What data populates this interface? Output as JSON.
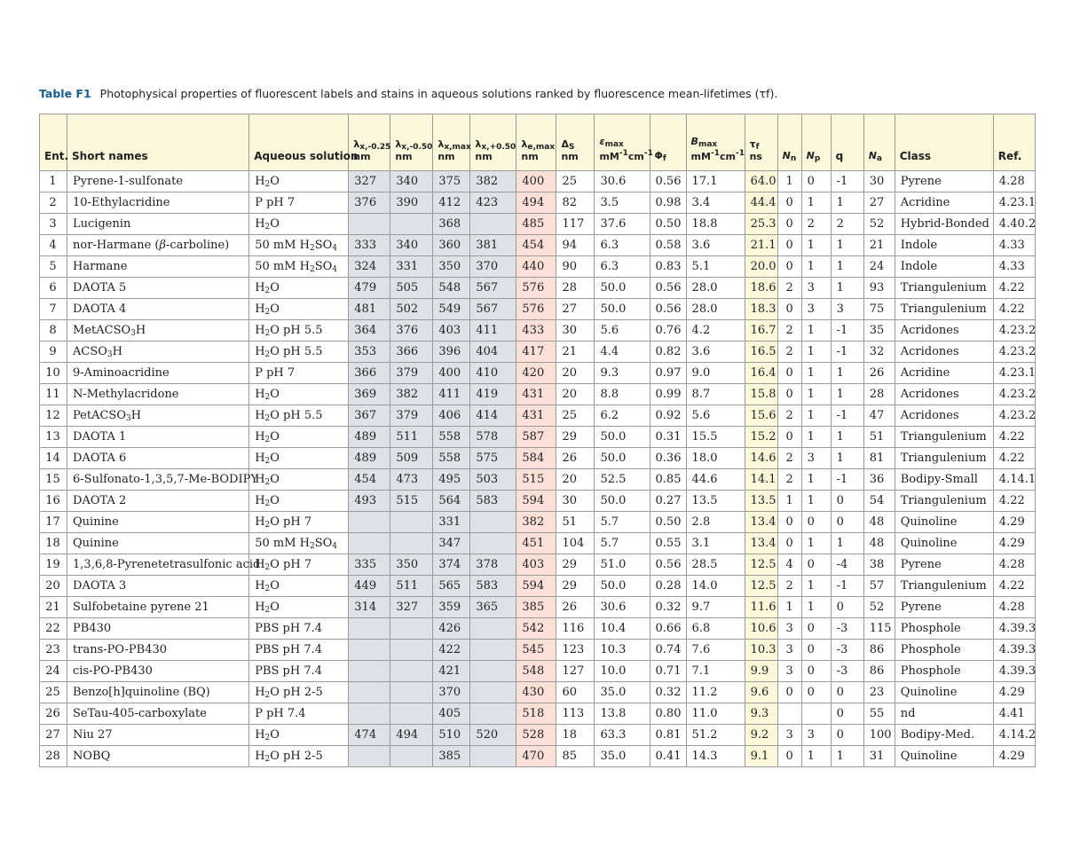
{
  "caption": {
    "label": "Table F1",
    "text": "Photophysical properties of fluorescent labels and stains in aqueous solutions ranked by fluorescence mean-lifetimes (τf)."
  },
  "columns": [
    {
      "key": "ent",
      "label": "Ent."
    },
    {
      "key": "name",
      "label": "Short names"
    },
    {
      "key": "solution",
      "label": "Aqueous solution"
    },
    {
      "key": "lx025",
      "label": "λx,-0.25 nm"
    },
    {
      "key": "lx050",
      "label": "λx,-0.50 nm"
    },
    {
      "key": "lxmax",
      "label": "λx,max nm"
    },
    {
      "key": "lxp050",
      "label": "λx,+0.50 nm"
    },
    {
      "key": "lemax",
      "label": "λe,max nm"
    },
    {
      "key": "ds",
      "label": "ΔS nm"
    },
    {
      "key": "emax",
      "label": "εmax mM-1cm-1"
    },
    {
      "key": "phi",
      "label": "Φf"
    },
    {
      "key": "bmax",
      "label": "Bmax mM-1cm-1"
    },
    {
      "key": "tau",
      "label": "τf ns"
    },
    {
      "key": "nn",
      "label": "Nn"
    },
    {
      "key": "np",
      "label": "Np"
    },
    {
      "key": "q",
      "label": "q"
    },
    {
      "key": "na",
      "label": "Na"
    },
    {
      "key": "cls",
      "label": "Class"
    },
    {
      "key": "ref",
      "label": "Ref."
    }
  ],
  "rows": [
    [
      "1",
      "Pyrene-1-sulfonate",
      "H2O",
      "327",
      "340",
      "375",
      "382",
      "400",
      "25",
      "30.6",
      "0.56",
      "17.1",
      "64.0",
      "1",
      "0",
      "-1",
      "30",
      "Pyrene",
      "4.28"
    ],
    [
      "2",
      "10-Ethylacridine",
      "P pH 7",
      "376",
      "390",
      "412",
      "423",
      "494",
      "82",
      "3.5",
      "0.98",
      "3.4",
      "44.4",
      "0",
      "1",
      "1",
      "27",
      "Acridine",
      "4.23.1"
    ],
    [
      "3",
      "Lucigenin",
      "H2O",
      "",
      "",
      "368",
      "",
      "485",
      "117",
      "37.6",
      "0.50",
      "18.8",
      "25.3",
      "0",
      "2",
      "2",
      "52",
      "Hybrid-Bonded",
      "4.40.2"
    ],
    [
      "4",
      "nor-Harmane (β-carboline)",
      "50 mM H2SO4",
      "333",
      "340",
      "360",
      "381",
      "454",
      "94",
      "6.3",
      "0.58",
      "3.6",
      "21.1",
      "0",
      "1",
      "1",
      "21",
      "Indole",
      "4.33"
    ],
    [
      "5",
      "Harmane",
      "50 mM H2SO4",
      "324",
      "331",
      "350",
      "370",
      "440",
      "90",
      "6.3",
      "0.83",
      "5.1",
      "20.0",
      "0",
      "1",
      "1",
      "24",
      "Indole",
      "4.33"
    ],
    [
      "6",
      "DAOTA 5",
      "H2O",
      "479",
      "505",
      "548",
      "567",
      "576",
      "28",
      "50.0",
      "0.56",
      "28.0",
      "18.6",
      "2",
      "3",
      "1",
      "93",
      "Triangulenium",
      "4.22"
    ],
    [
      "7",
      "DAOTA 4",
      "H2O",
      "481",
      "502",
      "549",
      "567",
      "576",
      "27",
      "50.0",
      "0.56",
      "28.0",
      "18.3",
      "0",
      "3",
      "3",
      "75",
      "Triangulenium",
      "4.22"
    ],
    [
      "8",
      "MetACSO3H",
      "H2O pH 5.5",
      "364",
      "376",
      "403",
      "411",
      "433",
      "30",
      "5.6",
      "0.76",
      "4.2",
      "16.7",
      "2",
      "1",
      "-1",
      "35",
      "Acridones",
      "4.23.2"
    ],
    [
      "9",
      "ACSO3H",
      "H2O pH 5.5",
      "353",
      "366",
      "396",
      "404",
      "417",
      "21",
      "4.4",
      "0.82",
      "3.6",
      "16.5",
      "2",
      "1",
      "-1",
      "32",
      "Acridones",
      "4.23.2"
    ],
    [
      "10",
      "9-Aminoacridine",
      "P pH 7",
      "366",
      "379",
      "400",
      "410",
      "420",
      "20",
      "9.3",
      "0.97",
      "9.0",
      "16.4",
      "0",
      "1",
      "1",
      "26",
      "Acridine",
      "4.23.1"
    ],
    [
      "11",
      "N-Methylacridone",
      "H2O",
      "369",
      "382",
      "411",
      "419",
      "431",
      "20",
      "8.8",
      "0.99",
      "8.7",
      "15.8",
      "0",
      "1",
      "1",
      "28",
      "Acridones",
      "4.23.2"
    ],
    [
      "12",
      "PetACSO3H",
      "H2O pH 5.5",
      "367",
      "379",
      "406",
      "414",
      "431",
      "25",
      "6.2",
      "0.92",
      "5.6",
      "15.6",
      "2",
      "1",
      "-1",
      "47",
      "Acridones",
      "4.23.2"
    ],
    [
      "13",
      "DAOTA 1",
      "H2O",
      "489",
      "511",
      "558",
      "578",
      "587",
      "29",
      "50.0",
      "0.31",
      "15.5",
      "15.2",
      "0",
      "1",
      "1",
      "51",
      "Triangulenium",
      "4.22"
    ],
    [
      "14",
      "DAOTA 6",
      "H2O",
      "489",
      "509",
      "558",
      "575",
      "584",
      "26",
      "50.0",
      "0.36",
      "18.0",
      "14.6",
      "2",
      "3",
      "1",
      "81",
      "Triangulenium",
      "4.22"
    ],
    [
      "15",
      "6-Sulfonato-1,3,5,7-Me-BODIPY",
      "H2O",
      "454",
      "473",
      "495",
      "503",
      "515",
      "20",
      "52.5",
      "0.85",
      "44.6",
      "14.1",
      "2",
      "1",
      "-1",
      "36",
      "Bodipy-Small",
      "4.14.1"
    ],
    [
      "16",
      "DAOTA 2",
      "H2O",
      "493",
      "515",
      "564",
      "583",
      "594",
      "30",
      "50.0",
      "0.27",
      "13.5",
      "13.5",
      "1",
      "1",
      "0",
      "54",
      "Triangulenium",
      "4.22"
    ],
    [
      "17",
      "Quinine",
      "H2O pH 7",
      "",
      "",
      "331",
      "",
      "382",
      "51",
      "5.7",
      "0.50",
      "2.8",
      "13.4",
      "0",
      "0",
      "0",
      "48",
      "Quinoline",
      "4.29"
    ],
    [
      "18",
      "Quinine",
      "50 mM H2SO4",
      "",
      "",
      "347",
      "",
      "451",
      "104",
      "5.7",
      "0.55",
      "3.1",
      "13.4",
      "0",
      "1",
      "1",
      "48",
      "Quinoline",
      "4.29"
    ],
    [
      "19",
      "1,3,6,8-Pyrenetetrasulfonic acid",
      "H2O pH 7",
      "335",
      "350",
      "374",
      "378",
      "403",
      "29",
      "51.0",
      "0.56",
      "28.5",
      "12.5",
      "4",
      "0",
      "-4",
      "38",
      "Pyrene",
      "4.28"
    ],
    [
      "20",
      "DAOTA 3",
      "H2O",
      "449",
      "511",
      "565",
      "583",
      "594",
      "29",
      "50.0",
      "0.28",
      "14.0",
      "12.5",
      "2",
      "1",
      "-1",
      "57",
      "Triangulenium",
      "4.22"
    ],
    [
      "21",
      "Sulfobetaine pyrene 21",
      "H2O",
      "314",
      "327",
      "359",
      "365",
      "385",
      "26",
      "30.6",
      "0.32",
      "9.7",
      "11.6",
      "1",
      "1",
      "0",
      "52",
      "Pyrene",
      "4.28"
    ],
    [
      "22",
      "PB430",
      "PBS pH 7.4",
      "",
      "",
      "426",
      "",
      "542",
      "116",
      "10.4",
      "0.66",
      "6.8",
      "10.6",
      "3",
      "0",
      "-3",
      "115",
      "Phosphole",
      "4.39.3"
    ],
    [
      "23",
      "trans-PO-PB430",
      "PBS pH 7.4",
      "",
      "",
      "422",
      "",
      "545",
      "123",
      "10.3",
      "0.74",
      "7.6",
      "10.3",
      "3",
      "0",
      "-3",
      "86",
      "Phosphole",
      "4.39.3"
    ],
    [
      "24",
      "cis-PO-PB430",
      "PBS pH 7.4",
      "",
      "",
      "421",
      "",
      "548",
      "127",
      "10.0",
      "0.71",
      "7.1",
      "9.9",
      "3",
      "0",
      "-3",
      "86",
      "Phosphole",
      "4.39.3"
    ],
    [
      "25",
      "Benzo[h]quinoline (BQ)",
      "H2O pH 2-5",
      "",
      "",
      "370",
      "",
      "430",
      "60",
      "35.0",
      "0.32",
      "11.2",
      "9.6",
      "0",
      "0",
      "0",
      "23",
      "Quinoline",
      "4.29"
    ],
    [
      "26",
      "SeTau-405-carboxylate",
      "P pH 7.4",
      "",
      "",
      "405",
      "",
      "518",
      "113",
      "13.8",
      "0.80",
      "11.0",
      "9.3",
      "",
      "",
      "0",
      "55",
      "nd",
      "4.41"
    ],
    [
      "27",
      "Niu 27",
      "H2O",
      "474",
      "494",
      "510",
      "520",
      "528",
      "18",
      "63.3",
      "0.81",
      "51.2",
      "9.2",
      "3",
      "3",
      "0",
      "100",
      "Bodipy-Med.",
      "4.14.2"
    ],
    [
      "28",
      "NOBQ",
      "H2O pH 2-5",
      "",
      "",
      "385",
      "",
      "470",
      "85",
      "35.0",
      "0.41",
      "14.3",
      "9.1",
      "0",
      "1",
      "1",
      "31",
      "Quinoline",
      "4.29"
    ]
  ]
}
